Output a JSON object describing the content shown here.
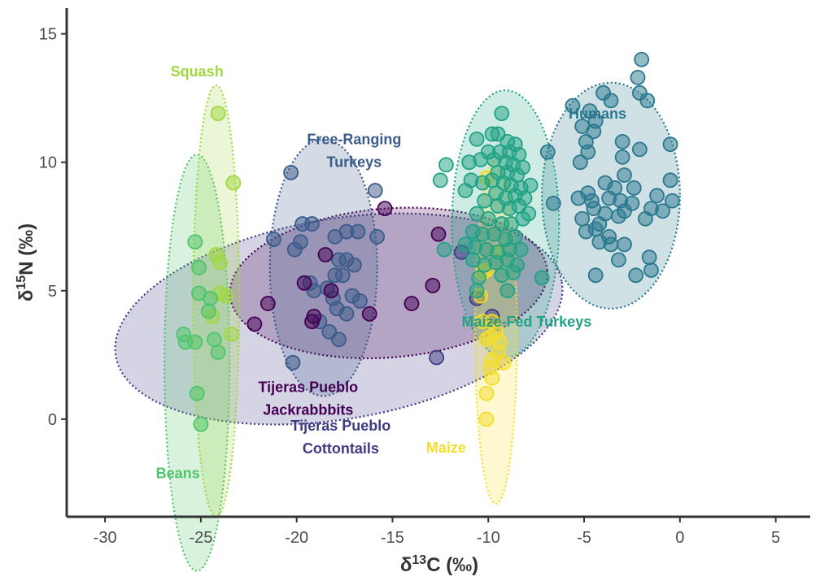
{
  "chart_data": {
    "type": "scatter",
    "xlabel": {
      "main": "δ",
      "sup": "13",
      "rest": "C (‰)"
    },
    "ylabel": {
      "main": "δ",
      "sup": "15",
      "rest": "N (‰)"
    },
    "xlim": [
      -32,
      6.8
    ],
    "ylim": [
      -3.8,
      16
    ],
    "x_ticks": [
      -30,
      -25,
      -20,
      -15,
      -10,
      -5,
      0,
      5
    ],
    "y_ticks": [
      0,
      5,
      10,
      15
    ],
    "grid": false,
    "groups": [
      {
        "name": "Squash",
        "label_lines": [
          "Squash"
        ],
        "label_at": [
          -25.2,
          13.35
        ],
        "color": "#a0d840",
        "ellipse": {
          "cx": -24.2,
          "cy": 4.6,
          "rx": 1.2,
          "ry": 8.4,
          "rot": 0
        },
        "points": [
          [
            -24.1,
            11.9
          ],
          [
            -23.3,
            9.2
          ],
          [
            -24.2,
            6.4
          ],
          [
            -24.0,
            6.1
          ],
          [
            -24.0,
            4.9
          ],
          [
            -23.7,
            4.8
          ],
          [
            -24.4,
            4.0
          ],
          [
            -23.4,
            3.3
          ]
        ]
      },
      {
        "name": "Beans",
        "label_lines": [
          "Beans"
        ],
        "label_at": [
          -26.2,
          -2.3
        ],
        "color": "#4fc46a",
        "ellipse": {
          "cx": -25.2,
          "cy": 2.2,
          "rx": 1.7,
          "ry": 8.1,
          "rot": 0
        },
        "points": [
          [
            -25.3,
            6.9
          ],
          [
            -25.1,
            5.9
          ],
          [
            -25.1,
            4.9
          ],
          [
            -24.5,
            4.7
          ],
          [
            -24.6,
            4.2
          ],
          [
            -25.9,
            3.3
          ],
          [
            -25.8,
            3.0
          ],
          [
            -25.3,
            3.0
          ],
          [
            -24.3,
            3.1
          ],
          [
            -24.1,
            2.6
          ],
          [
            -25.2,
            1.0
          ],
          [
            -25.0,
            -0.2
          ]
        ]
      },
      {
        "name": "Free-Ranging Turkeys",
        "label_lines": [
          "Free-Ranging",
          "Turkeys"
        ],
        "label_at": [
          -17.0,
          10.7
        ],
        "color": "#3b5b8a",
        "ellipse": {
          "cx": -18.6,
          "cy": 5.9,
          "rx": 2.8,
          "ry": 5.0,
          "rot": 0
        },
        "points": [
          [
            -20.3,
            9.6
          ],
          [
            -15.9,
            8.9
          ],
          [
            -19.7,
            7.6
          ],
          [
            -19.2,
            7.6
          ],
          [
            -17.4,
            7.3
          ],
          [
            -16.8,
            7.3
          ],
          [
            -15.8,
            7.1
          ],
          [
            -18.0,
            7.1
          ],
          [
            -21.2,
            7.0
          ],
          [
            -19.8,
            6.9
          ],
          [
            -20.1,
            6.6
          ],
          [
            -17.8,
            6.2
          ],
          [
            -17.4,
            6.2
          ],
          [
            -17.0,
            6.0
          ],
          [
            -18.0,
            5.6
          ],
          [
            -17.6,
            5.6
          ],
          [
            -19.3,
            5.3
          ],
          [
            -19.1,
            5.0
          ],
          [
            -18.4,
            5.1
          ],
          [
            -18.1,
            4.7
          ],
          [
            -17.1,
            4.8
          ],
          [
            -16.7,
            4.6
          ],
          [
            -17.9,
            4.3
          ],
          [
            -17.4,
            4.1
          ],
          [
            -18.8,
            3.8
          ],
          [
            -18.3,
            3.4
          ],
          [
            -17.8,
            3.1
          ],
          [
            -20.2,
            2.2
          ]
        ]
      },
      {
        "name": "Tijeras Pueblo Jackrabbbits",
        "label_lines": [
          "Tijeras Pueblo",
          "Jackrabbbits"
        ],
        "label_at": [
          -19.4,
          1.05
        ],
        "color": "#440154",
        "ellipse": {
          "cx": -15.2,
          "cy": 5.3,
          "rx": 8.3,
          "ry": 2.9,
          "rot": -0.08
        },
        "points": [
          [
            -15.4,
            8.2
          ],
          [
            -12.6,
            7.2
          ],
          [
            -18.5,
            6.4
          ],
          [
            -19.6,
            5.3
          ],
          [
            -18.2,
            5.0
          ],
          [
            -12.9,
            5.2
          ],
          [
            -19.1,
            4.0
          ],
          [
            -19.2,
            3.8
          ],
          [
            -21.5,
            4.5
          ],
          [
            -16.2,
            4.1
          ],
          [
            -14.0,
            4.5
          ],
          [
            -22.2,
            3.7
          ]
        ]
      },
      {
        "name": "Tijeras Pueblo Cottontails",
        "label_lines": [
          "Tijeras Pueblo",
          "Cottontails"
        ],
        "label_at": [
          -17.7,
          -0.45
        ],
        "color": "#3f3b83",
        "ellipse": {
          "cx": -17.8,
          "cy": 3.9,
          "rx": 11.8,
          "ry": 3.9,
          "rot": -0.165
        },
        "points": [
          [
            -12.7,
            2.4
          ],
          [
            -11.4,
            6.5
          ],
          [
            -9.8,
            4.0
          ],
          [
            -10.6,
            4.7
          ]
        ]
      },
      {
        "name": "Maize",
        "label_lines": [
          "Maize"
        ],
        "label_at": [
          -12.2,
          -1.3
        ],
        "color": "#f4de2a",
        "ellipse": {
          "cx": -9.6,
          "cy": 3.4,
          "rx": 1.1,
          "ry": 6.7,
          "rot": 0
        },
        "points": [
          [
            -10.1,
            9.4
          ],
          [
            -9.5,
            6.5
          ],
          [
            -10.1,
            5.8
          ],
          [
            -10.3,
            5.7
          ],
          [
            -10.4,
            4.8
          ],
          [
            -10.3,
            3.8
          ],
          [
            -9.8,
            3.8
          ],
          [
            -9.6,
            3.4
          ],
          [
            -9.9,
            3.2
          ],
          [
            -10.1,
            3.1
          ],
          [
            -9.4,
            3.0
          ],
          [
            -9.5,
            2.6
          ],
          [
            -9.8,
            2.3
          ],
          [
            -9.2,
            2.2
          ],
          [
            -9.9,
            2.0
          ],
          [
            -9.8,
            1.6
          ],
          [
            -10.1,
            1.0
          ],
          [
            -10.1,
            0.0
          ]
        ]
      },
      {
        "name": "Maize-Fed Turkeys",
        "label_lines": [
          "Maize-Fed Turkeys"
        ],
        "label_at": [
          -8.0,
          3.6
        ],
        "color": "#22a284",
        "ellipse": {
          "cx": -9.1,
          "cy": 7.6,
          "rx": 2.8,
          "ry": 5.2,
          "rot": 0
        },
        "points": [
          [
            -9.3,
            11.9
          ],
          [
            -10.6,
            10.9
          ],
          [
            -9.8,
            11.1
          ],
          [
            -9.5,
            11.1
          ],
          [
            -9.0,
            10.8
          ],
          [
            -8.6,
            10.7
          ],
          [
            -10.0,
            10.4
          ],
          [
            -9.4,
            10.4
          ],
          [
            -8.9,
            10.4
          ],
          [
            -8.4,
            10.3
          ],
          [
            -11.0,
            10.0
          ],
          [
            -10.4,
            10.1
          ],
          [
            -9.7,
            10.1
          ],
          [
            -9.1,
            10.0
          ],
          [
            -8.7,
            9.9
          ],
          [
            -8.2,
            9.8
          ],
          [
            -12.2,
            9.9
          ],
          [
            -9.5,
            9.6
          ],
          [
            -9.0,
            9.6
          ],
          [
            -8.5,
            9.5
          ],
          [
            -12.5,
            9.3
          ],
          [
            -10.9,
            9.3
          ],
          [
            -10.3,
            9.2
          ],
          [
            -9.8,
            9.3
          ],
          [
            -9.2,
            9.2
          ],
          [
            -8.8,
            9.1
          ],
          [
            -8.3,
            9.0
          ],
          [
            -7.8,
            9.1
          ],
          [
            -11.2,
            8.9
          ],
          [
            -9.6,
            8.8
          ],
          [
            -9.1,
            8.6
          ],
          [
            -8.6,
            8.7
          ],
          [
            -8.1,
            8.6
          ],
          [
            -10.2,
            8.5
          ],
          [
            -9.5,
            8.3
          ],
          [
            -8.9,
            8.2
          ],
          [
            -8.4,
            8.3
          ],
          [
            -7.9,
            8.0
          ],
          [
            -10.6,
            8.0
          ],
          [
            -10.0,
            7.8
          ],
          [
            -9.3,
            7.6
          ],
          [
            -8.8,
            7.6
          ],
          [
            -8.2,
            7.8
          ],
          [
            -10.8,
            7.3
          ],
          [
            -10.3,
            7.2
          ],
          [
            -9.7,
            7.2
          ],
          [
            -9.1,
            7.0
          ],
          [
            -8.6,
            7.1
          ],
          [
            -11.2,
            6.8
          ],
          [
            -10.7,
            6.7
          ],
          [
            -10.1,
            6.6
          ],
          [
            -9.5,
            6.5
          ],
          [
            -8.9,
            6.6
          ],
          [
            -8.3,
            6.6
          ],
          [
            -12.3,
            6.6
          ],
          [
            -10.8,
            6.2
          ],
          [
            -10.2,
            6.0
          ],
          [
            -9.6,
            6.1
          ],
          [
            -9.0,
            6.2
          ],
          [
            -8.5,
            6.0
          ],
          [
            -10.5,
            5.5
          ],
          [
            -9.3,
            5.6
          ],
          [
            -8.7,
            5.7
          ],
          [
            -7.2,
            5.5
          ],
          [
            -10.6,
            5.0
          ],
          [
            -9.0,
            5.0
          ]
        ]
      },
      {
        "name": "Humans",
        "label_lines": [
          "Humans"
        ],
        "label_at": [
          -4.3,
          11.7
        ],
        "color": "#2a788e",
        "ellipse": {
          "cx": -3.6,
          "cy": 8.7,
          "rx": 3.6,
          "ry": 4.4,
          "rot": 0
        },
        "points": [
          [
            -2.0,
            14.0
          ],
          [
            -2.2,
            13.3
          ],
          [
            -2.1,
            12.7
          ],
          [
            -4.0,
            12.7
          ],
          [
            -3.6,
            12.4
          ],
          [
            -1.7,
            12.4
          ],
          [
            -5.6,
            12.2
          ],
          [
            -4.7,
            12.0
          ],
          [
            -4.4,
            11.6
          ],
          [
            -5.1,
            11.4
          ],
          [
            -4.5,
            11.2
          ],
          [
            -4.9,
            10.8
          ],
          [
            -3.0,
            10.8
          ],
          [
            -0.5,
            10.7
          ],
          [
            -2.1,
            10.5
          ],
          [
            -4.8,
            10.4
          ],
          [
            -6.9,
            10.4
          ],
          [
            -3.0,
            10.2
          ],
          [
            -5.2,
            10.0
          ],
          [
            -3.9,
            9.2
          ],
          [
            -2.9,
            9.5
          ],
          [
            -3.4,
            9.0
          ],
          [
            -2.4,
            9.0
          ],
          [
            -0.5,
            9.3
          ],
          [
            -4.8,
            8.8
          ],
          [
            -3.7,
            8.6
          ],
          [
            -1.2,
            8.7
          ],
          [
            -5.3,
            8.6
          ],
          [
            -4.6,
            8.5
          ],
          [
            -3.1,
            8.5
          ],
          [
            -2.5,
            8.4
          ],
          [
            -0.4,
            8.5
          ],
          [
            -6.6,
            8.4
          ],
          [
            -4.5,
            8.2
          ],
          [
            -3.9,
            8.0
          ],
          [
            -2.9,
            8.1
          ],
          [
            -1.5,
            8.2
          ],
          [
            -0.9,
            8.1
          ],
          [
            -5.1,
            7.8
          ],
          [
            -4.2,
            7.6
          ],
          [
            -3.2,
            7.9
          ],
          [
            -1.8,
            7.8
          ],
          [
            -4.9,
            7.3
          ],
          [
            -4.4,
            7.4
          ],
          [
            -3.7,
            7.1
          ],
          [
            -4.2,
            6.9
          ],
          [
            -3.6,
            6.8
          ],
          [
            -2.9,
            6.8
          ],
          [
            -1.6,
            6.3
          ],
          [
            -3.2,
            6.2
          ],
          [
            -1.5,
            5.8
          ],
          [
            -2.3,
            5.6
          ],
          [
            -4.4,
            5.6
          ]
        ]
      }
    ]
  }
}
